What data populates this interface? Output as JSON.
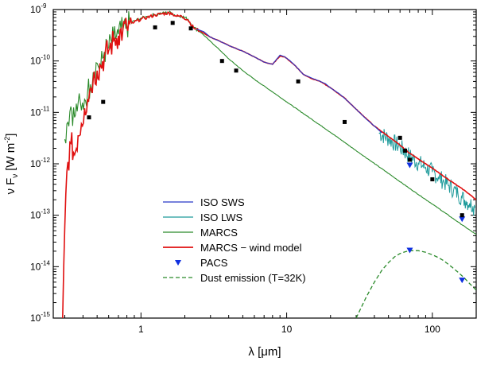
{
  "chart_data": {
    "type": "line",
    "xscale": "log",
    "yscale": "log",
    "xlim": [
      0.25,
      200
    ],
    "ylim": [
      1e-15,
      1e-09
    ],
    "xlabel": {
      "prefix": "λ [",
      "unit": "μ",
      "suffix": "m]"
    },
    "ylabel": {
      "nu": "ν",
      "F": "F",
      "sub": "ν",
      "units": "[W m",
      "sup": "-2",
      "close": "]"
    },
    "x_ticks": [
      {
        "value": 1,
        "label": "1"
      },
      {
        "value": 10,
        "label": "10"
      },
      {
        "value": 100,
        "label": "100"
      }
    ],
    "y_ticks": [
      {
        "value": 1e-09,
        "base": "10",
        "exp": "-9"
      },
      {
        "value": 1e-10,
        "base": "10",
        "exp": "-10"
      },
      {
        "value": 1e-11,
        "base": "10",
        "exp": "-11"
      },
      {
        "value": 1e-12,
        "base": "10",
        "exp": "-12"
      },
      {
        "value": 1e-13,
        "base": "10",
        "exp": "-13"
      },
      {
        "value": 1e-14,
        "base": "10",
        "exp": "-14"
      },
      {
        "value": 1e-15,
        "base": "10",
        "exp": "-15"
      }
    ],
    "series": [
      {
        "name": "ISO SWS",
        "color": "#2838c8",
        "style": "line",
        "x": [
          2.4,
          2.7,
          3.0,
          3.5,
          4.0,
          5.0,
          6.0,
          7.0,
          8.0,
          9.0,
          9.7,
          10.5,
          11.5,
          13.0,
          15.0,
          17.0,
          18.5,
          20.0,
          23.0,
          26.0,
          30.0,
          35.0,
          40.0,
          45.0
        ],
        "y": [
          4.2e-10,
          3.7e-10,
          2.9e-10,
          2.4e-10,
          2e-10,
          1.55e-10,
          1.2e-10,
          9.5e-11,
          8.6e-11,
          1.3e-10,
          1.2e-10,
          1.02e-10,
          8e-11,
          5.5e-11,
          4.6e-11,
          4e-11,
          3.6e-11,
          3e-11,
          2.3e-11,
          1.7e-11,
          1.15e-11,
          7.5e-12,
          5.4e-12,
          4e-12
        ]
      },
      {
        "name": "ISO LWS",
        "color": "#1f9b9b",
        "style": "noisy",
        "x": [
          43,
          50,
          60,
          70,
          80,
          90,
          100,
          110,
          120,
          130,
          140,
          150,
          160,
          170,
          180,
          190,
          196
        ],
        "y": [
          4e-12,
          3.1e-12,
          2.1e-12,
          1.4e-12,
          1.05e-12,
          8.5e-13,
          6.9e-13,
          5.6e-13,
          4.5e-13,
          3.8e-13,
          3.1e-13,
          2.6e-13,
          2.2e-13,
          1.9e-13,
          1.7e-13,
          1.5e-13,
          1.4e-13
        ]
      },
      {
        "name": "MARCS",
        "color": "#2a8a2a",
        "style": "line",
        "x": [
          0.3,
          0.31,
          0.33,
          0.35,
          0.37,
          0.39,
          0.41,
          0.43,
          0.45,
          0.47,
          0.5,
          0.53,
          0.56,
          0.6,
          0.65,
          0.7,
          0.75,
          0.8,
          0.9,
          1.0,
          1.1,
          1.25,
          1.4,
          1.6,
          1.75,
          1.9,
          2.1,
          2.3,
          2.6,
          3.0,
          3.5,
          4.0,
          5.0,
          6.0,
          8.0,
          10.0,
          15.0,
          20.0,
          30.0,
          50.0,
          70.0,
          100.0,
          150.0,
          200.0
        ],
        "y": [
          3e-12,
          6e-12,
          1.3e-11,
          8e-12,
          1.5e-11,
          1.1e-11,
          1.8e-11,
          2.5e-11,
          3.5e-11,
          6e-11,
          9e-11,
          8e-11,
          1.5e-10,
          1.8e-10,
          2.8e-10,
          3.3e-10,
          4e-10,
          4.8e-10,
          6e-10,
          6.8e-10,
          7.3e-10,
          8e-10,
          8.5e-10,
          8.8e-10,
          7.5e-10,
          7.5e-10,
          6.5e-10,
          4.5e-10,
          3.5e-10,
          2.4e-10,
          1.6e-10,
          1.1e-10,
          6.5e-11,
          4.4e-11,
          2.5e-11,
          1.6e-11,
          7.2e-12,
          4.1e-12,
          1.8e-12,
          6.5e-13,
          3.3e-13,
          1.65e-13,
          7.4e-14,
          4.2e-14
        ]
      },
      {
        "name": "MARCS − wind model",
        "color": "#e01010",
        "style": "line",
        "x": [
          0.29,
          0.3,
          0.31,
          0.33,
          0.35,
          0.37,
          0.39,
          0.41,
          0.43,
          0.45,
          0.47,
          0.5,
          0.53,
          0.56,
          0.6,
          0.65,
          0.7,
          0.75,
          0.8,
          0.9,
          1.0,
          1.1,
          1.25,
          1.4,
          1.6,
          1.75,
          1.9,
          2.1,
          2.3,
          2.6,
          3.0,
          3.5,
          4.0,
          5.0,
          6.0,
          7.0,
          8.0,
          9.0,
          9.7,
          10.5,
          11.5,
          13.0,
          15.0,
          17.0,
          20.0,
          25.0,
          30.0,
          40.0,
          50.0,
          60.0,
          70.0,
          80.0,
          100.0,
          120.0,
          150.0,
          170.0,
          200.0
        ],
        "y": [
          1e-15,
          6e-14,
          7e-13,
          2.5e-12,
          1.5e-12,
          3.5e-12,
          6e-12,
          1.2e-11,
          1.8e-11,
          3e-11,
          4.5e-11,
          6.5e-11,
          8e-11,
          1.2e-10,
          1.6e-10,
          2.5e-10,
          3.1e-10,
          3.8e-10,
          4.5e-10,
          5.7e-10,
          6.5e-10,
          7e-10,
          7.8e-10,
          8.3e-10,
          8.6e-10,
          7.4e-10,
          7.4e-10,
          6.3e-10,
          4.4e-10,
          3.7e-10,
          2.9e-10,
          2.4e-10,
          2e-10,
          1.55e-10,
          1.2e-10,
          9.5e-11,
          8.6e-11,
          1.25e-10,
          1.2e-10,
          1e-10,
          8e-11,
          5.5e-11,
          4.5e-11,
          4e-11,
          3e-11,
          1.9e-11,
          1.15e-11,
          5.4e-12,
          3.4e-12,
          2.3e-12,
          1.6e-12,
          1.25e-12,
          8.2e-13,
          5.7e-13,
          3.7e-13,
          2.9e-13,
          2e-13
        ]
      },
      {
        "name": "PACS",
        "color": "#1030e0",
        "style": "triangles",
        "x": [
          70,
          70,
          160,
          160
        ],
        "y": [
          9.5e-13,
          2.1e-14,
          8.5e-14,
          5.5e-15
        ]
      },
      {
        "name": "Dust emission (T=32K)",
        "color": "#2a8a2a",
        "style": "dashed",
        "x": [
          30,
          35,
          40,
          45,
          50,
          55,
          60,
          65,
          70,
          80,
          90,
          100,
          110,
          120,
          135,
          150,
          165,
          180,
          200
        ],
        "y": [
          1e-15,
          2.5e-15,
          5e-15,
          8.5e-15,
          1.2e-14,
          1.55e-14,
          1.8e-14,
          1.95e-14,
          2.05e-14,
          2.05e-14,
          1.9e-14,
          1.7e-14,
          1.5e-14,
          1.3e-14,
          1e-14,
          7.8e-15,
          6.1e-15,
          4.7e-15,
          3.5e-15
        ]
      }
    ],
    "photometry": {
      "name": "photometry",
      "color": "#000000",
      "style": "squares",
      "x": [
        0.44,
        0.55,
        1.25,
        1.65,
        2.2,
        3.6,
        4.5,
        12,
        25,
        60,
        65,
        70,
        100,
        160
      ],
      "y": [
        8e-12,
        1.6e-11,
        4.5e-10,
        5.5e-10,
        4.3e-10,
        1e-10,
        6.5e-11,
        4e-11,
        6.5e-12,
        3.2e-12,
        1.8e-12,
        1.2e-12,
        5e-13,
        1e-13
      ]
    },
    "legend": {
      "position": "bottom-center",
      "entries": [
        {
          "label": "ISO SWS",
          "color": "#2838c8",
          "kind": "line"
        },
        {
          "label": "ISO LWS",
          "color": "#1f9b9b",
          "kind": "line"
        },
        {
          "label": "MARCS",
          "color": "#2a8a2a",
          "kind": "line"
        },
        {
          "label": "MARCS − wind model",
          "color": "#e01010",
          "kind": "line"
        },
        {
          "label": "PACS",
          "color": "#1030e0",
          "kind": "triangle"
        },
        {
          "label": "Dust emission (T=32K)",
          "color": "#2a8a2a",
          "kind": "dashed"
        }
      ]
    }
  }
}
